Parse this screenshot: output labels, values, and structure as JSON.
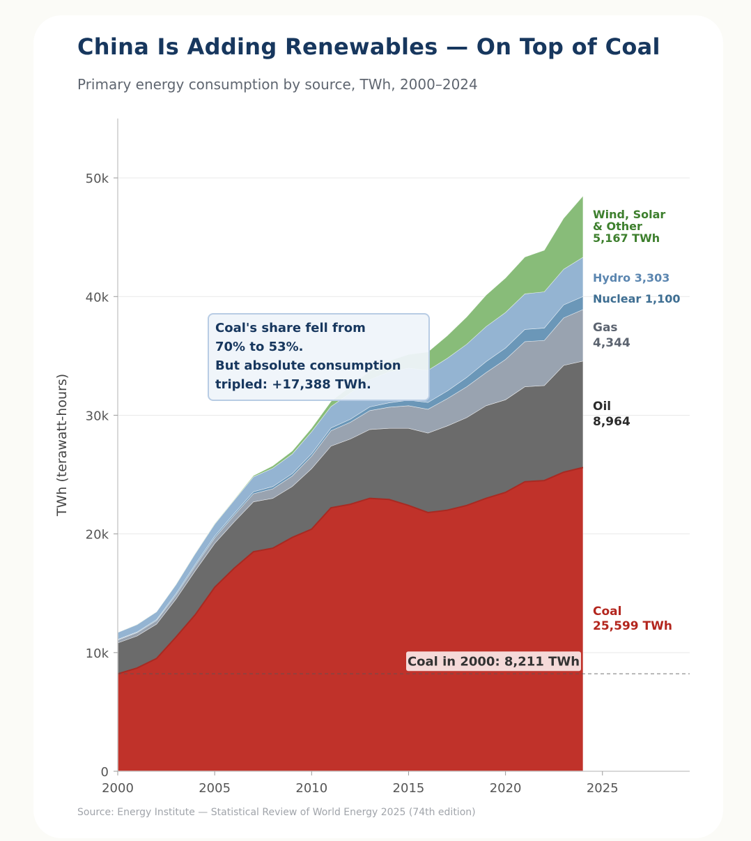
{
  "header": {
    "title": "China Is Adding Renewables — On Top of Coal",
    "subtitle": "Primary energy consumption by source, TWh, 2000–2024"
  },
  "footer": {
    "source": "Source: Energy Institute — Statistical Review of World Energy 2025 (74th edition)"
  },
  "annotation": {
    "lines": [
      "Coal's share fell from",
      "70% to 53%.",
      "But absolute consumption",
      "tripled: +17,388 TWh."
    ]
  },
  "colors": {
    "coal": "#c0322a",
    "oil": "#6b6b6b",
    "gas": "#99a3b0",
    "nuclear": "#6b97b8",
    "hydro": "#94b4d2",
    "renewables": "#88bc79",
    "coal_label": "#b3261e",
    "oil_label": "#2b2b2b",
    "gas_label": "#5c6470",
    "nuclear_label": "#3e6e92",
    "hydro_label": "#5b86b0",
    "renewables_label": "#3d7f2d",
    "title": "#17375e"
  },
  "chart_data": {
    "type": "area",
    "stacked": true,
    "xlabel": "",
    "ylabel": "TWh (terawatt-hours)",
    "xlim": [
      2000,
      2029.5
    ],
    "ylim": [
      0,
      55000
    ],
    "x_ticks": [
      2000,
      2005,
      2010,
      2015,
      2020,
      2025
    ],
    "x_tick_labels": [
      "2000",
      "2005",
      "2010",
      "2015",
      "2020",
      "2025"
    ],
    "y_ticks": [
      0,
      10000,
      20000,
      30000,
      40000,
      50000
    ],
    "y_tick_labels": [
      "0",
      "10k",
      "20k",
      "30k",
      "40k",
      "50k"
    ],
    "grid": "horizontal",
    "x": [
      2000,
      2001,
      2002,
      2003,
      2004,
      2005,
      2006,
      2007,
      2008,
      2009,
      2010,
      2011,
      2012,
      2013,
      2014,
      2015,
      2016,
      2017,
      2018,
      2019,
      2020,
      2021,
      2022,
      2023,
      2024
    ],
    "series": [
      {
        "key": "coal",
        "label_lines": [
          "Coal",
          "25,599 TWh"
        ],
        "values": [
          8211,
          8700,
          9500,
          11300,
          13200,
          15500,
          17100,
          18500,
          18800,
          19700,
          20400,
          22200,
          22500,
          23000,
          22900,
          22400,
          21800,
          22000,
          22400,
          23000,
          23500,
          24400,
          24500,
          25200,
          25599
        ]
      },
      {
        "key": "oil",
        "label_lines": [
          "Oil",
          "8,964"
        ],
        "values": [
          2600,
          2700,
          2900,
          3200,
          3700,
          3700,
          3900,
          4200,
          4200,
          4300,
          5100,
          5200,
          5500,
          5800,
          6000,
          6500,
          6700,
          7100,
          7400,
          7800,
          7800,
          8000,
          8000,
          9000,
          8964
        ]
      },
      {
        "key": "gas",
        "label_lines": [
          "Gas",
          "4,344"
        ],
        "values": [
          250,
          280,
          300,
          340,
          400,
          470,
          560,
          680,
          800,
          880,
          1050,
          1290,
          1410,
          1590,
          1780,
          1900,
          2000,
          2300,
          2600,
          2800,
          3400,
          3800,
          3800,
          4000,
          4344
        ]
      },
      {
        "key": "nuclear",
        "label_lines": [
          "Nuclear 1,100"
        ],
        "values": [
          50,
          60,
          80,
          120,
          140,
          150,
          160,
          180,
          190,
          200,
          210,
          240,
          260,
          310,
          370,
          470,
          580,
          650,
          780,
          920,
          960,
          1030,
          1050,
          1100,
          1100
        ]
      },
      {
        "key": "hydro",
        "label_lines": [
          "Hydro 3,303"
        ],
        "values": [
          580,
          620,
          650,
          750,
          900,
          1000,
          1100,
          1250,
          1550,
          1650,
          1850,
          1800,
          2200,
          2300,
          2600,
          2700,
          2700,
          2750,
          2800,
          2950,
          3000,
          3000,
          3050,
          3000,
          3303
        ]
      },
      {
        "key": "renewables",
        "label_lines": [
          "Wind, Solar",
          "& Other",
          "5,167 TWh"
        ],
        "values": [
          10,
          15,
          20,
          30,
          40,
          50,
          70,
          100,
          200,
          250,
          300,
          430,
          560,
          720,
          930,
          1150,
          1550,
          1900,
          2300,
          2650,
          2900,
          3100,
          3500,
          4300,
          5167
        ]
      }
    ],
    "reference_line": {
      "y": 8211,
      "label": "Coal in 2000: 8,211 TWh"
    }
  }
}
